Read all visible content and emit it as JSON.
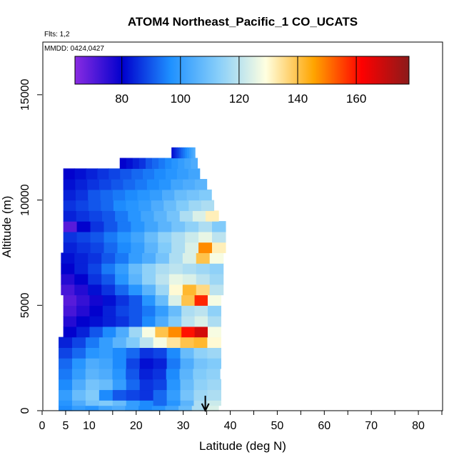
{
  "chart_data": {
    "type": "heatmap",
    "title": "ATOM4 Northeast_Pacific_1 CO_UCATS",
    "flights_label": "Flts: 1,2",
    "dates_label": "MMDD: 0424,0427",
    "xlabel": "Latitude (deg N)",
    "ylabel": "Altitude (m)",
    "xlim": [
      0,
      85
    ],
    "ylim": [
      0,
      17500
    ],
    "x_ticks": [
      0,
      5,
      10,
      20,
      30,
      40,
      50,
      60,
      70,
      80
    ],
    "y_ticks": [
      0,
      5000,
      10000,
      15000
    ],
    "colorbar": {
      "range": [
        64,
        178
      ],
      "ticks": [
        80,
        100,
        120,
        140,
        160
      ],
      "colors": [
        "#8a2be2",
        "#0000cd",
        "#1e90ff",
        "#87cefa",
        "#ffffe0",
        "#ffa500",
        "#ff0000",
        "#8b1a1a"
      ]
    },
    "arrow_latitude": 34.7,
    "grid": false,
    "legend": "colorbar top",
    "profile_layers": [
      {
        "alt": [
          0,
          250
        ],
        "lat": [
          3.5,
          37.5
        ],
        "co": [
          96,
          100,
          98,
          102,
          104,
          100,
          96,
          98,
          102,
          108,
          118,
          124
        ]
      },
      {
        "alt": [
          250,
          500
        ],
        "lat": [
          3.5,
          38
        ],
        "co": [
          98,
          104,
          110,
          112,
          108,
          100,
          96,
          92,
          98,
          106,
          118,
          122
        ]
      },
      {
        "alt": [
          500,
          1000
        ],
        "lat": [
          3.5,
          38
        ],
        "co": [
          100,
          108,
          112,
          96,
          90,
          88,
          86,
          92,
          100,
          110,
          116,
          118
        ]
      },
      {
        "alt": [
          1000,
          1500
        ],
        "lat": [
          3.5,
          38
        ],
        "co": [
          96,
          104,
          110,
          108,
          100,
          92,
          86,
          88,
          98,
          108,
          114,
          116
        ]
      },
      {
        "alt": [
          1500,
          2000
        ],
        "lat": [
          3.5,
          37.8
        ],
        "co": [
          94,
          100,
          106,
          104,
          98,
          90,
          84,
          86,
          96,
          106,
          112,
          114
        ]
      },
      {
        "alt": [
          2000,
          2500
        ],
        "lat": [
          3.5,
          38
        ],
        "co": [
          92,
          98,
          104,
          102,
          96,
          88,
          82,
          84,
          94,
          104,
          110,
          112
        ]
      },
      {
        "alt": [
          2500,
          3000
        ],
        "lat": [
          3.5,
          38
        ],
        "co": [
          88,
          92,
          98,
          100,
          96,
          92,
          86,
          88,
          96,
          108,
          114,
          116
        ]
      },
      {
        "alt": [
          3000,
          3500
        ],
        "lat": [
          3.5,
          38
        ],
        "co": [
          84,
          88,
          94,
          100,
          106,
          112,
          120,
          128,
          134,
          140,
          142,
          130
        ]
      },
      {
        "alt": [
          3500,
          4000
        ],
        "lat": [
          4.5,
          38
        ],
        "co": [
          80,
          84,
          90,
          96,
          104,
          116,
          128,
          140,
          148,
          160,
          168,
          128
        ]
      },
      {
        "alt": [
          4000,
          4500
        ],
        "lat": [
          4.5,
          38
        ],
        "co": [
          76,
          80,
          82,
          84,
          86,
          90,
          96,
          104,
          112,
          120,
          124,
          118
        ]
      },
      {
        "alt": [
          4500,
          5000
        ],
        "lat": [
          4.5,
          38
        ],
        "co": [
          72,
          76,
          80,
          84,
          88,
          90,
          94,
          100,
          108,
          118,
          120,
          114
        ]
      },
      {
        "alt": [
          5000,
          5500
        ],
        "lat": [
          4.5,
          38
        ],
        "co": [
          70,
          74,
          78,
          82,
          86,
          90,
          98,
          108,
          124,
          140,
          158,
          128
        ]
      },
      {
        "alt": [
          5500,
          6000
        ],
        "lat": [
          4,
          38.5
        ],
        "co": [
          72,
          76,
          82,
          86,
          92,
          98,
          106,
          116,
          130,
          142,
          136,
          120
        ]
      },
      {
        "alt": [
          6000,
          6500
        ],
        "lat": [
          4,
          38.5
        ],
        "co": [
          76,
          80,
          86,
          90,
          98,
          106,
          114,
          120,
          126,
          124,
          120,
          116
        ]
      },
      {
        "alt": [
          6500,
          7000
        ],
        "lat": [
          4,
          38.5
        ],
        "co": [
          80,
          84,
          88,
          94,
          100,
          108,
          114,
          118,
          120,
          118,
          116,
          114
        ]
      },
      {
        "alt": [
          7000,
          7500
        ],
        "lat": [
          4,
          38.5
        ],
        "co": [
          82,
          84,
          86,
          90,
          94,
          100,
          104,
          110,
          118,
          124,
          140,
          128
        ]
      },
      {
        "alt": [
          7500,
          8000
        ],
        "lat": [
          4.5,
          39
        ],
        "co": [
          84,
          86,
          88,
          92,
          96,
          100,
          106,
          112,
          118,
          124,
          148,
          132
        ]
      },
      {
        "alt": [
          8000,
          8500
        ],
        "lat": [
          4.5,
          39
        ],
        "co": [
          86,
          88,
          90,
          94,
          98,
          102,
          108,
          114,
          118,
          122,
          126,
          120
        ]
      },
      {
        "alt": [
          8500,
          9000
        ],
        "lat": [
          4.5,
          39
        ],
        "co": [
          70,
          80,
          86,
          90,
          94,
          98,
          102,
          106,
          110,
          114,
          118,
          112
        ]
      },
      {
        "alt": [
          9000,
          9500
        ],
        "lat": [
          4.5,
          37.5
        ],
        "co": [
          84,
          86,
          88,
          90,
          94,
          98,
          102,
          106,
          110,
          118,
          124,
          132
        ]
      },
      {
        "alt": [
          9500,
          10000
        ],
        "lat": [
          4.5,
          36.5
        ],
        "co": [
          86,
          88,
          90,
          92,
          96,
          98,
          100,
          104,
          108,
          112,
          116,
          118
        ]
      },
      {
        "alt": [
          10000,
          10500
        ],
        "lat": [
          4.5,
          36
        ],
        "co": [
          84,
          86,
          90,
          92,
          94,
          96,
          98,
          100,
          104,
          108,
          110,
          112
        ]
      },
      {
        "alt": [
          10500,
          11000
        ],
        "lat": [
          4.5,
          35
        ],
        "co": [
          82,
          84,
          86,
          88,
          90,
          92,
          94,
          96,
          98,
          102,
          104,
          106
        ]
      },
      {
        "alt": [
          11000,
          11500
        ],
        "lat": [
          4.5,
          33.5
        ],
        "co": [
          80,
          82,
          84,
          86,
          88,
          90,
          92,
          94,
          96,
          98,
          100,
          102
        ]
      },
      {
        "alt": [
          11500,
          12000
        ],
        "lat": [
          16.5,
          33
        ],
        "co": [
          80,
          82,
          84,
          86,
          90,
          92,
          94,
          96,
          98,
          100,
          102,
          104
        ]
      },
      {
        "alt": [
          12000,
          12500
        ],
        "lat": [
          27.5,
          32.5
        ],
        "co": [
          82,
          84,
          86,
          88,
          90,
          92,
          94,
          96,
          98,
          100,
          102,
          104
        ]
      }
    ]
  }
}
